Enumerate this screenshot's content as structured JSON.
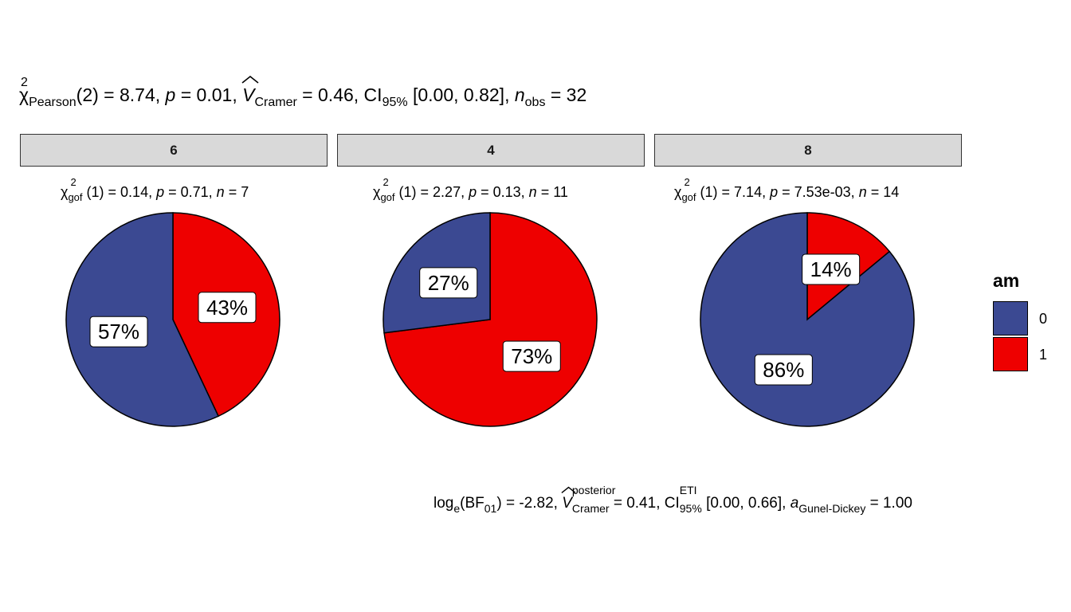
{
  "title": {
    "chi": "χ",
    "chi_sup": "2",
    "chi_sub": "Pearson",
    "part1": "(2) = 8.74, ",
    "p_label": "p",
    "part2": " = 0.01, ",
    "v_label": "V",
    "v_sub": "Cramer",
    "part3": " = 0.46, CI",
    "ci_sub": "95%",
    "part4": " [0.00, 0.82], ",
    "n_label": "n",
    "n_sub": "obs",
    "part5": " = 32"
  },
  "colors": {
    "am_0": "#3B4992",
    "am_1": "#EE0000"
  },
  "panels": [
    {
      "strip": "6",
      "sub": {
        "chi": "χ",
        "sup": "2",
        "sub": "gof",
        "df": " (1) = 0.14, ",
        "p": "p",
        "pv": " = 0.71, ",
        "n": "n",
        "nv": " = 7"
      }
    },
    {
      "strip": "4",
      "sub": {
        "chi": "χ",
        "sup": "2",
        "sub": "gof",
        "df": " (1) = 2.27, ",
        "p": "p",
        "pv": " = 0.13, ",
        "n": "n",
        "nv": " = 11"
      }
    },
    {
      "strip": "8",
      "sub": {
        "chi": "χ",
        "sup": "2",
        "sub": "gof",
        "df": " (1) = 7.14, ",
        "p": "p",
        "pv": " = 7.53e-03, ",
        "n": "n",
        "nv": " = 14"
      }
    }
  ],
  "legend": {
    "title": "am",
    "items": [
      {
        "label": "0"
      },
      {
        "label": "1"
      }
    ]
  },
  "caption": {
    "log": "log",
    "log_sub": "e",
    "bf": "(BF",
    "bf_sub": "01",
    "part1": ") = -2.82, ",
    "v_label": "V",
    "v_sup": "posterior",
    "v_sub": "Cramer",
    "part2": " = 0.41, CI",
    "ci_sup": "ETI",
    "ci_sub": "95%",
    "part3": " [0.00, 0.66], ",
    "a_label": "a",
    "a_sub": "Gunel-Dickey",
    "part4": " = 1.00"
  },
  "chart_data": {
    "type": "pie",
    "facet_by": "cyl",
    "fill_by": "am",
    "facets": [
      {
        "facet": "6",
        "slices": [
          {
            "am": "0",
            "value": 57,
            "label": "57%"
          },
          {
            "am": "1",
            "value": 43,
            "label": "43%"
          }
        ]
      },
      {
        "facet": "4",
        "slices": [
          {
            "am": "0",
            "value": 27,
            "label": "27%"
          },
          {
            "am": "1",
            "value": 73,
            "label": "73%"
          }
        ]
      },
      {
        "facet": "8",
        "slices": [
          {
            "am": "0",
            "value": 86,
            "label": "86%"
          },
          {
            "am": "1",
            "value": 14,
            "label": "14%"
          }
        ]
      }
    ],
    "legend_position": "right"
  }
}
